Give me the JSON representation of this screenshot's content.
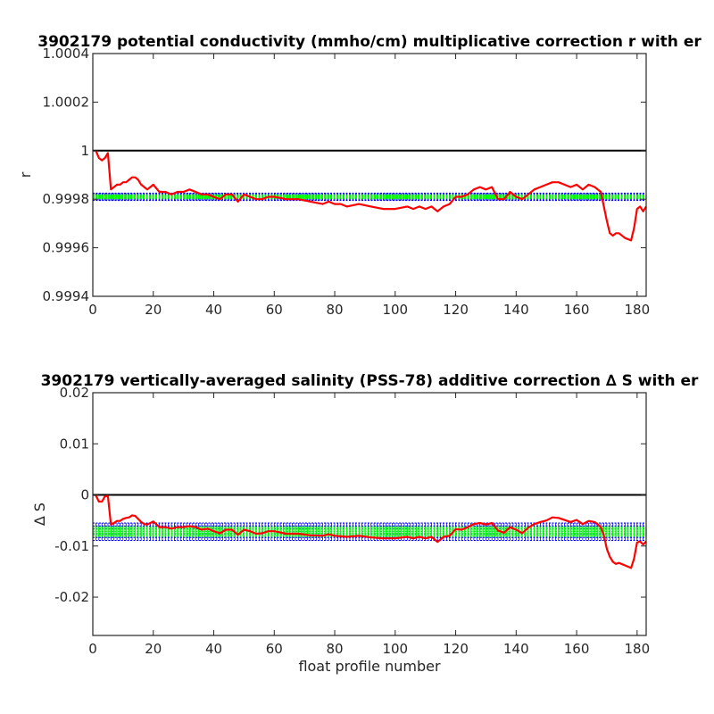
{
  "chart_data": [
    {
      "type": "line",
      "title": "3902179 potential conductivity (mmho/cm) multiplicative correction r with er",
      "xlabel": "",
      "ylabel": "r",
      "xlim": [
        0,
        183
      ],
      "ylim": [
        0.9994,
        1.0004
      ],
      "xticks": [
        0,
        20,
        40,
        60,
        80,
        100,
        120,
        140,
        160,
        180
      ],
      "yticks": [
        0.9994,
        0.9996,
        0.9998,
        1,
        1.0002,
        1.0004
      ],
      "ytick_labels": [
        "0.9994",
        "0.9996",
        "0.9998",
        "1",
        "1.0002",
        "1.0004"
      ],
      "grid": false,
      "reference_line": 1,
      "band": {
        "center": 0.99981,
        "inner": 5e-06,
        "outer": 1.5e-05
      },
      "colors": {
        "series": "#ff0000",
        "inner_band": "#00ff00",
        "outer_band": "#0000ff",
        "reference": "#000000"
      },
      "series": [
        {
          "x": [
            1,
            2,
            3,
            4,
            5,
            6,
            7,
            8,
            9,
            10,
            11,
            12,
            13,
            14,
            15,
            16,
            17,
            18,
            19,
            20,
            22,
            24,
            26,
            28,
            30,
            32,
            34,
            36,
            38,
            40,
            42,
            44,
            46,
            48,
            50,
            52,
            54,
            56,
            58,
            60,
            64,
            68,
            72,
            76,
            78,
            80,
            82,
            84,
            88,
            92,
            96,
            100,
            104,
            106,
            108,
            110,
            112,
            114,
            116,
            118,
            120,
            122,
            124,
            126,
            128,
            130,
            132,
            134,
            136,
            138,
            140,
            142,
            144,
            146,
            148,
            150,
            152,
            154,
            156,
            158,
            160,
            162,
            164,
            166,
            168,
            169,
            170,
            171,
            172,
            173,
            174,
            176,
            178,
            179,
            180,
            181,
            182,
            183
          ],
          "y": [
            1.0,
            0.99997,
            0.99996,
            0.99997,
            0.99999,
            0.99984,
            0.99985,
            0.99986,
            0.99986,
            0.99987,
            0.99987,
            0.99988,
            0.99989,
            0.99989,
            0.99988,
            0.99986,
            0.99985,
            0.99984,
            0.99985,
            0.99986,
            0.99983,
            0.99983,
            0.99982,
            0.99983,
            0.99983,
            0.99984,
            0.99983,
            0.99982,
            0.99982,
            0.99981,
            0.9998,
            0.99982,
            0.99982,
            0.99979,
            0.99982,
            0.99981,
            0.9998,
            0.9998,
            0.99981,
            0.99981,
            0.9998,
            0.9998,
            0.99979,
            0.99978,
            0.99979,
            0.99978,
            0.99978,
            0.99977,
            0.99978,
            0.99977,
            0.99976,
            0.99976,
            0.99977,
            0.99976,
            0.99977,
            0.99976,
            0.99977,
            0.99975,
            0.99977,
            0.99978,
            0.99981,
            0.99981,
            0.99982,
            0.99984,
            0.99985,
            0.99984,
            0.99985,
            0.9998,
            0.9998,
            0.99983,
            0.99981,
            0.9998,
            0.99982,
            0.99984,
            0.99985,
            0.99986,
            0.99987,
            0.99987,
            0.99986,
            0.99985,
            0.99986,
            0.99984,
            0.99986,
            0.99985,
            0.99983,
            0.99977,
            0.99971,
            0.99966,
            0.99965,
            0.99966,
            0.99966,
            0.99964,
            0.99963,
            0.99968,
            0.99976,
            0.99977,
            0.99975,
            0.99977
          ]
        }
      ]
    },
    {
      "type": "line",
      "title": "3902179 vertically-averaged salinity (PSS-78) additive correction ∆ S with er",
      "xlabel": "float profile number",
      "ylabel": "∆ S",
      "xlim": [
        0,
        183
      ],
      "ylim": [
        -0.0275,
        0.02
      ],
      "xticks": [
        0,
        20,
        40,
        60,
        80,
        100,
        120,
        140,
        160,
        180
      ],
      "yticks": [
        -0.02,
        -0.01,
        0,
        0.01,
        0.02
      ],
      "ytick_labels": [
        "-0.02",
        "-0.01",
        "0",
        "0.01",
        "0.02"
      ],
      "grid": false,
      "reference_line": 0,
      "band": {
        "center": -0.0072,
        "inner": 0.0006,
        "outer": 0.0017
      },
      "colors": {
        "series": "#ff0000",
        "inner_band": "#00ff00",
        "outer_band": "#0000ff",
        "reference": "#000000"
      },
      "series": [
        {
          "x": [
            1,
            2,
            3,
            4,
            5,
            6,
            7,
            8,
            9,
            10,
            11,
            12,
            13,
            14,
            15,
            16,
            17,
            18,
            19,
            20,
            22,
            24,
            26,
            28,
            30,
            32,
            34,
            36,
            38,
            40,
            42,
            44,
            46,
            48,
            50,
            52,
            54,
            56,
            58,
            60,
            64,
            68,
            72,
            76,
            78,
            80,
            82,
            84,
            88,
            92,
            96,
            100,
            104,
            106,
            108,
            110,
            112,
            114,
            116,
            118,
            120,
            122,
            124,
            126,
            128,
            130,
            132,
            134,
            136,
            138,
            140,
            142,
            144,
            146,
            148,
            150,
            152,
            154,
            156,
            158,
            160,
            162,
            164,
            166,
            168,
            169,
            170,
            171,
            172,
            173,
            174,
            176,
            178,
            179,
            180,
            181,
            182,
            183
          ],
          "y": [
            -0.0001,
            -0.0013,
            -0.0013,
            -0.0003,
            -0.0002,
            -0.0058,
            -0.0055,
            -0.0051,
            -0.0051,
            -0.0047,
            -0.0045,
            -0.0044,
            -0.004,
            -0.0041,
            -0.0047,
            -0.0053,
            -0.0057,
            -0.0058,
            -0.0055,
            -0.0052,
            -0.0063,
            -0.0063,
            -0.0066,
            -0.0063,
            -0.0063,
            -0.0061,
            -0.0063,
            -0.0068,
            -0.0066,
            -0.0071,
            -0.0075,
            -0.0068,
            -0.0068,
            -0.0078,
            -0.0068,
            -0.0071,
            -0.0076,
            -0.0075,
            -0.0071,
            -0.0071,
            -0.0076,
            -0.0076,
            -0.0079,
            -0.008,
            -0.0077,
            -0.008,
            -0.0081,
            -0.0082,
            -0.008,
            -0.0083,
            -0.0085,
            -0.0085,
            -0.0082,
            -0.0085,
            -0.0082,
            -0.0085,
            -0.0082,
            -0.0092,
            -0.0082,
            -0.008,
            -0.0067,
            -0.0068,
            -0.0063,
            -0.0057,
            -0.0055,
            -0.0058,
            -0.0055,
            -0.007,
            -0.0074,
            -0.0063,
            -0.0068,
            -0.0075,
            -0.0064,
            -0.0057,
            -0.0053,
            -0.005,
            -0.0044,
            -0.0045,
            -0.0049,
            -0.0053,
            -0.0049,
            -0.0057,
            -0.0051,
            -0.0053,
            -0.0063,
            -0.0079,
            -0.0106,
            -0.0121,
            -0.0131,
            -0.0135,
            -0.0133,
            -0.0138,
            -0.0143,
            -0.0125,
            -0.0093,
            -0.0091,
            -0.0097,
            -0.0091
          ]
        }
      ]
    }
  ]
}
